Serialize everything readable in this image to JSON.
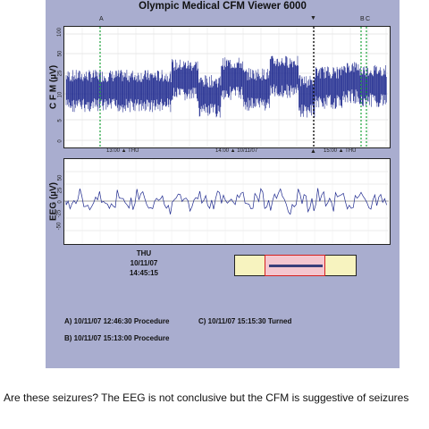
{
  "app": {
    "title": "Olympic Medical CFM Viewer 6000"
  },
  "cfm": {
    "ylabel": "C F M (µV)",
    "ticks": [
      "100",
      "50",
      "25",
      "10",
      "5",
      "0"
    ],
    "markers": [
      "A",
      "B",
      "C"
    ],
    "time_labels": [
      "13:00 ▲ THU",
      "14:00 ▲ 10/11/07",
      "15:00 ▲ THU"
    ]
  },
  "eeg": {
    "ylabel": "EEG (µV)",
    "ticks": [
      "50",
      "25",
      "0",
      "-25",
      "-50"
    ]
  },
  "cursor": {
    "day": "THU",
    "date": "10/11/07",
    "time": "14:45:15"
  },
  "events": [
    {
      "label": "A) 10/11/07 12:46:30  Procedure"
    },
    {
      "label": "B) 10/11/07 15:13:00  Procedure"
    },
    {
      "label": "C) 10/11/07 15:15:30  Turned"
    }
  ],
  "caption": "Are these seizures? The EEG is not conclusive but the CFM is suggestive of seizures",
  "colors": {
    "panel": "#a9adcf",
    "trace": "#1f2a8f",
    "marker": "#1aa33a",
    "slider_window": "#d42020"
  }
}
